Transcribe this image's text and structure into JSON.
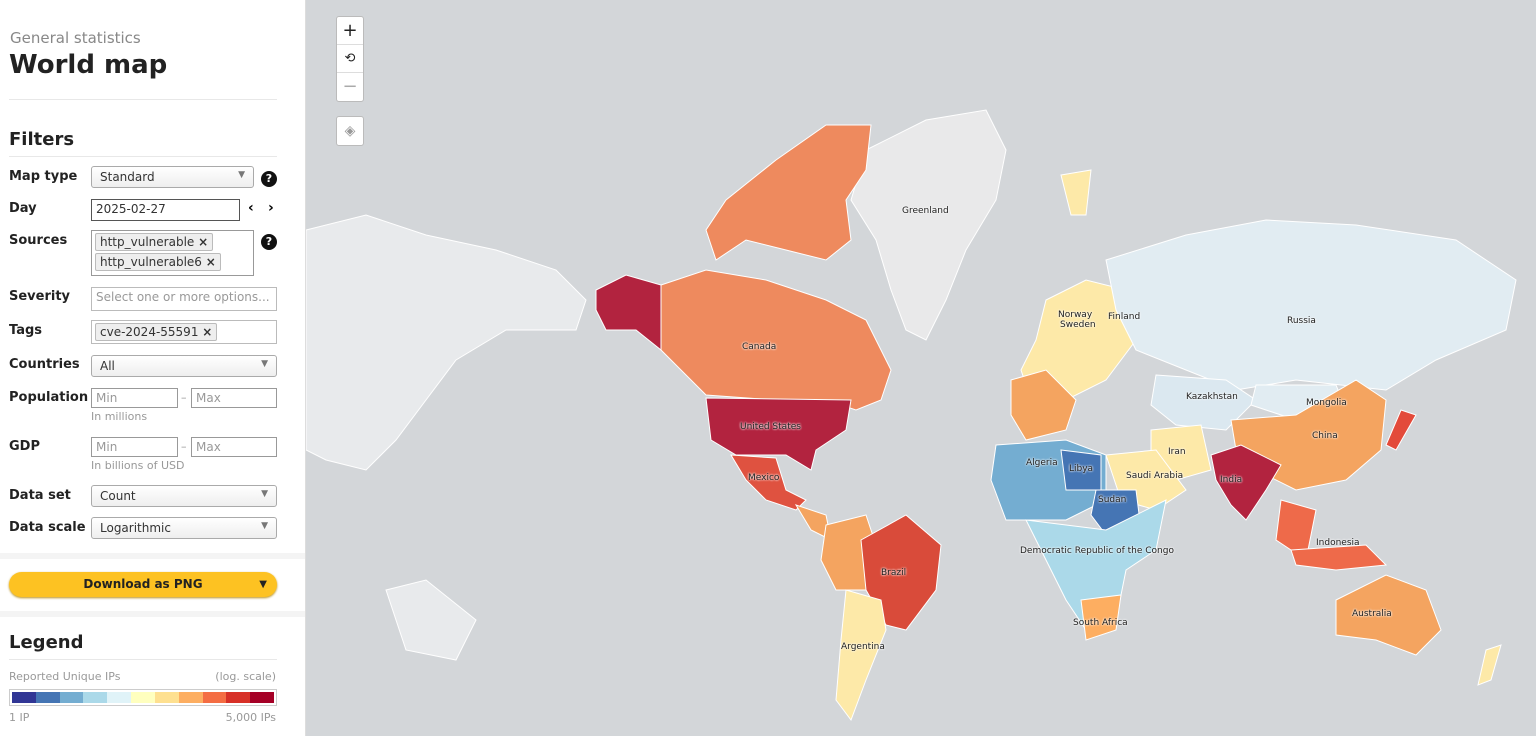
{
  "header": {
    "subtitle": "General statistics",
    "title": "World map"
  },
  "filters": {
    "heading": "Filters",
    "map_type": {
      "label": "Map type",
      "value": "Standard"
    },
    "day": {
      "label": "Day",
      "value": "2025-02-27"
    },
    "sources": {
      "label": "Sources",
      "tags": [
        "http_vulnerable",
        "http_vulnerable6"
      ]
    },
    "severity": {
      "label": "Severity",
      "placeholder": "Select one or more options..."
    },
    "tags": {
      "label": "Tags",
      "tags": [
        "cve-2024-55591"
      ]
    },
    "countries": {
      "label": "Countries",
      "value": "All"
    },
    "population": {
      "label": "Population",
      "min_placeholder": "Min",
      "max_placeholder": "Max",
      "hint": "In millions"
    },
    "gdp": {
      "label": "GDP",
      "min_placeholder": "Min",
      "max_placeholder": "Max",
      "hint": "In billions of USD"
    },
    "data_set": {
      "label": "Data set",
      "value": "Count"
    },
    "data_scale": {
      "label": "Data scale",
      "value": "Logarithmic"
    },
    "sep": "–"
  },
  "download": {
    "label": "Download as PNG"
  },
  "legend": {
    "heading": "Legend",
    "title": "Reported Unique IPs",
    "scale_note": "(log. scale)",
    "min": "1 IP",
    "max": "5,000 IPs",
    "colors": [
      "#313695",
      "#4575b4",
      "#74add1",
      "#abd9e9",
      "#e0f3f8",
      "#ffffbf",
      "#fee090",
      "#fdae61",
      "#f46d43",
      "#d73027",
      "#a50026"
    ]
  },
  "map": {
    "controls": {
      "zoom_in": "+",
      "reset": "⟲",
      "zoom_out": "−"
    },
    "labels": [
      "Greenland",
      "Canada",
      "United States",
      "Mexico",
      "Brazil",
      "Argentina",
      "Russia",
      "Norway",
      "Sweden",
      "Finland",
      "Kazakhstan",
      "Mongolia",
      "China",
      "Iran",
      "India",
      "Saudi Arabia",
      "Algeria",
      "Libya",
      "Sudan",
      "Democratic Republic of the Congo",
      "South Africa",
      "Indonesia",
      "Australia"
    ]
  }
}
